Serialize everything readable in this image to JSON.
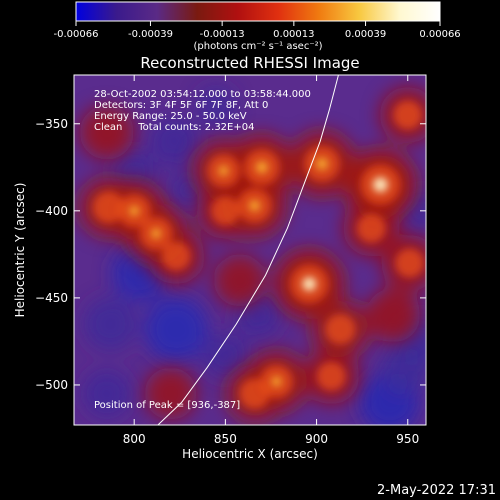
{
  "chart_data": {
    "type": "heatmap",
    "title": "Reconstructed RHESSI Image",
    "xlabel": "Heliocentric X (arcsec)",
    "ylabel": "Heliocentric Y (arcsec)",
    "xlim": [
      767,
      960
    ],
    "ylim": [
      -523,
      -322
    ],
    "x_ticks": [
      800,
      850,
      900,
      950
    ],
    "y_ticks": [
      -350,
      -400,
      -450,
      -500
    ],
    "colorbar": {
      "ticks": [
        "-0.00066",
        "-0.00039",
        "-0.00013",
        "0.00013",
        "0.00039",
        "0.00066"
      ],
      "tick_values": [
        -0.00066,
        -0.00039,
        -0.00013,
        0.00013,
        0.00039,
        0.00066
      ],
      "range": [
        -0.00066,
        0.00066
      ],
      "units_label": "(photons cm⁻² s⁻¹ asec⁻²)",
      "colors": [
        "#0000e0",
        "#3a1a8c",
        "#5a2a86",
        "#7a1a10",
        "#b01010",
        "#e03010",
        "#f07a10",
        "#f8c840",
        "#fff8d0",
        "#ffffff"
      ]
    },
    "annotations": [
      "28-Oct-2002 03:54:12.000 to 03:58:44.000",
      "Detectors: 3F 4F 5F 6F 7F 8F, Att 0",
      "Energy Range: 25.0 - 50.0 keV",
      "Clean     Total counts: 2.32E+04"
    ],
    "peak_label": "Position of Peak = [936,-387]",
    "limb_curve": [
      [
        813,
        -523
      ],
      [
        826,
        -510
      ],
      [
        840,
        -490
      ],
      [
        856,
        -465
      ],
      [
        872,
        -437
      ],
      [
        884,
        -410
      ],
      [
        893,
        -385
      ],
      [
        902,
        -360
      ],
      [
        907,
        -342
      ],
      [
        912,
        -322
      ]
    ],
    "bright_regions": [
      {
        "x": 935,
        "y": -385,
        "level": 1.0
      },
      {
        "x": 896,
        "y": -442,
        "level": 0.95
      },
      {
        "x": 903,
        "y": -373,
        "level": 0.85
      },
      {
        "x": 870,
        "y": -375,
        "level": 0.85
      },
      {
        "x": 866,
        "y": -397,
        "level": 0.8
      },
      {
        "x": 849,
        "y": -377,
        "level": 0.75
      },
      {
        "x": 800,
        "y": -400,
        "level": 0.75
      },
      {
        "x": 786,
        "y": -398,
        "level": 0.7
      },
      {
        "x": 812,
        "y": -413,
        "level": 0.75
      },
      {
        "x": 823,
        "y": -426,
        "level": 0.6
      },
      {
        "x": 850,
        "y": -400,
        "level": 0.6
      },
      {
        "x": 878,
        "y": -498,
        "level": 0.75
      },
      {
        "x": 866,
        "y": -505,
        "level": 0.65
      },
      {
        "x": 913,
        "y": -468,
        "level": 0.65
      },
      {
        "x": 908,
        "y": -495,
        "level": 0.6
      },
      {
        "x": 951,
        "y": -430,
        "level": 0.6
      },
      {
        "x": 950,
        "y": -345,
        "level": 0.6
      },
      {
        "x": 930,
        "y": -410,
        "level": 0.6
      },
      {
        "x": 785,
        "y": -355,
        "level": 0.55
      },
      {
        "x": 820,
        "y": -505,
        "level": 0.5
      },
      {
        "x": 942,
        "y": -460,
        "level": 0.55
      },
      {
        "x": 858,
        "y": -440,
        "level": 0.5
      }
    ],
    "dark_regions": [
      {
        "x": 823,
        "y": -468,
        "level": 1.0
      },
      {
        "x": 803,
        "y": -436,
        "level": 0.8
      },
      {
        "x": 787,
        "y": -465,
        "level": 0.7
      },
      {
        "x": 940,
        "y": -510,
        "level": 0.9
      },
      {
        "x": 957,
        "y": -475,
        "level": 0.7
      },
      {
        "x": 948,
        "y": -492,
        "level": 0.6
      },
      {
        "x": 800,
        "y": -378,
        "level": 0.45
      },
      {
        "x": 822,
        "y": -360,
        "level": 0.55
      },
      {
        "x": 785,
        "y": -505,
        "level": 0.55
      },
      {
        "x": 868,
        "y": -460,
        "level": 0.5
      },
      {
        "x": 850,
        "y": -483,
        "level": 0.5
      },
      {
        "x": 830,
        "y": -388,
        "level": 0.35
      },
      {
        "x": 958,
        "y": -400,
        "level": 0.4
      },
      {
        "x": 845,
        "y": -340,
        "level": 0.35
      }
    ]
  },
  "footer": {
    "timestamp": "2-May-2022 17:31"
  }
}
